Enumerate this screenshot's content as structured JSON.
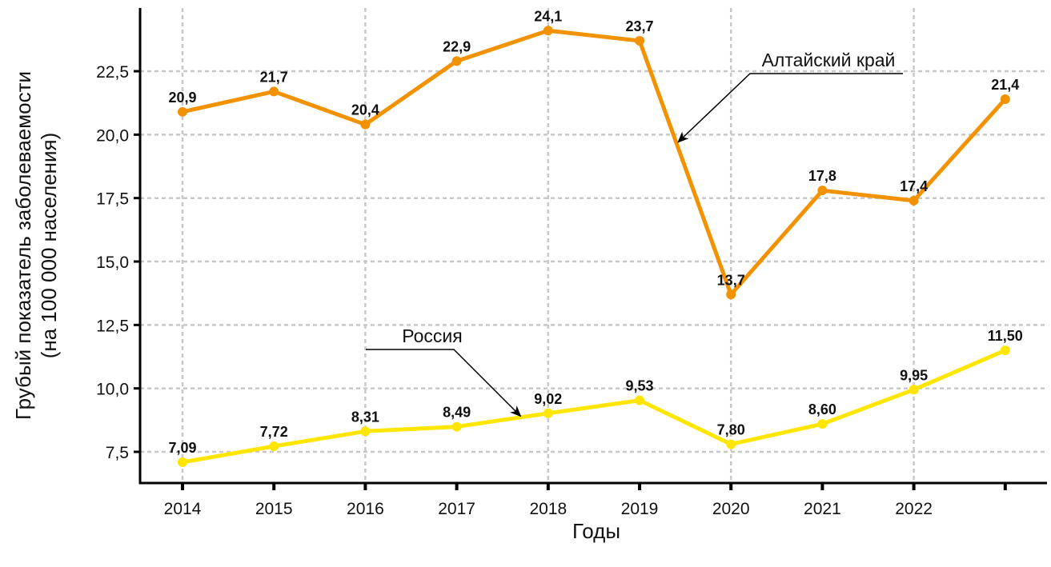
{
  "chart_data": {
    "type": "line",
    "title": "",
    "xlabel": "Годы",
    "ylabel_lines": [
      "Грубый показатель заболеваемости",
      "(на 100 000 населения)"
    ],
    "x": [
      2014,
      2015,
      2016,
      2017,
      2018,
      2019,
      2020,
      2021,
      2022,
      2023
    ],
    "x_tick_labels": [
      "2014",
      "2015",
      "2016",
      "2017",
      "2018",
      "2019",
      "2020",
      "2021",
      "2022",
      ""
    ],
    "ylim": [
      6.27,
      25.0
    ],
    "y_ticks": [
      7.5,
      10.0,
      12.5,
      15.0,
      17.5,
      20.0,
      22.5
    ],
    "y_tick_labels": [
      "7,5",
      "10,0",
      "12,5",
      "15,0",
      "17,5",
      "20,0",
      "22,5"
    ],
    "grid": true,
    "vertical_grid_years": [
      2014,
      2016,
      2018,
      2020,
      2022
    ],
    "series": [
      {
        "name": "Алтайский край",
        "color": "#F39200",
        "values": [
          20.9,
          21.7,
          20.4,
          22.9,
          24.1,
          23.7,
          13.7,
          17.8,
          17.4,
          21.4
        ],
        "labels": [
          "20,9",
          "21,7",
          "20,4",
          "22,9",
          "24,1",
          "23,7",
          "13,7",
          "17,8",
          "17,4",
          "21,4"
        ]
      },
      {
        "name": "Россия",
        "color": "#FFE600",
        "values": [
          7.09,
          7.72,
          8.31,
          8.49,
          9.02,
          9.53,
          7.8,
          8.6,
          9.95,
          11.5
        ],
        "labels": [
          "7,09",
          "7,72",
          "8,31",
          "8,49",
          "9,02",
          "9,53",
          "7,80",
          "8,60",
          "9,95",
          "11,50"
        ]
      }
    ],
    "annotations": [
      {
        "text": "Алтайский край",
        "series": "Алтайский край",
        "arrow_to": {
          "x": 2019.42,
          "y": 19.7
        }
      },
      {
        "text": "Россия",
        "series": "Россия",
        "arrow_to": {
          "x": 2017.7,
          "y": 8.9
        }
      }
    ]
  }
}
